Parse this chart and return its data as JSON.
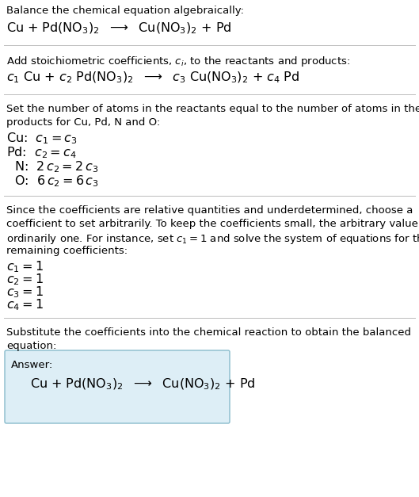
{
  "sec1_line1": "Balance the chemical equation algebraically:",
  "sec1_line2": "Cu + Pd(NO$_3$)$_2$  $\\longrightarrow$  Cu(NO$_3$)$_2$ + Pd",
  "sec2_line1": "Add stoichiometric coefficients, $c_i$, to the reactants and products:",
  "sec2_line2": "$c_1$ Cu + $c_2$ Pd(NO$_3$)$_2$  $\\longrightarrow$  $c_3$ Cu(NO$_3$)$_2$ + $c_4$ Pd",
  "sec3_line1": "Set the number of atoms in the reactants equal to the number of atoms in the",
  "sec3_line2": "products for Cu, Pd, N and O:",
  "sec3_eqs": [
    "Cu:  $c_1 = c_3$",
    "Pd:  $c_2 = c_4$",
    "  N:  $2\\,c_2 = 2\\,c_3$",
    "  O:  $6\\,c_2 = 6\\,c_3$"
  ],
  "sec4_line1": "Since the coefficients are relative quantities and underdetermined, choose a",
  "sec4_line2": "coefficient to set arbitrarily. To keep the coefficients small, the arbitrary value is",
  "sec4_line3": "ordinarily one. For instance, set $c_1 = 1$ and solve the system of equations for the",
  "sec4_line4": "remaining coefficients:",
  "sec4_vals": [
    "$c_1 = 1$",
    "$c_2 = 1$",
    "$c_3 = 1$",
    "$c_4 = 1$"
  ],
  "sec5_line1": "Substitute the coefficients into the chemical reaction to obtain the balanced",
  "sec5_line2": "equation:",
  "ans_label": "Answer:",
  "ans_eq": "Cu + Pd(NO$_3$)$_2$  $\\longrightarrow$  Cu(NO$_3$)$_2$ + Pd",
  "bg": "#ffffff",
  "tc": "#000000",
  "divider": "#bbbbbb",
  "ans_bg": "#ddeef6",
  "ans_border": "#88bbcc",
  "fs_body": 9.5,
  "fs_math": 11.5
}
